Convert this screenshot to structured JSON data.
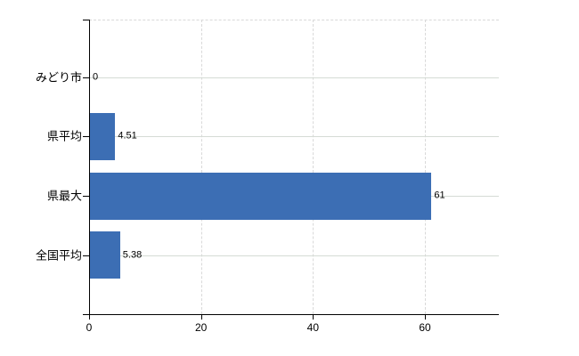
{
  "chart_data": {
    "type": "bar",
    "orientation": "horizontal",
    "categories": [
      "みどり市",
      "県平均",
      "県最大",
      "全国平均"
    ],
    "values": [
      0,
      4.51,
      61,
      5.38
    ],
    "value_labels": [
      "0",
      "4.51",
      "61",
      "5.38"
    ],
    "x_ticks": [
      0,
      20,
      40,
      60
    ],
    "x_tick_labels": [
      "0",
      "20",
      "40",
      "60"
    ],
    "xlim": [
      0,
      73.2
    ],
    "grid": true,
    "legend": false,
    "colors": {
      "bar": "#3c6eb4",
      "grid_vertical": "#d9d9d9",
      "grid_horizontal": "#d5dbd5",
      "axis": "#000000",
      "text": "#000000",
      "background": "#ffffff"
    }
  }
}
